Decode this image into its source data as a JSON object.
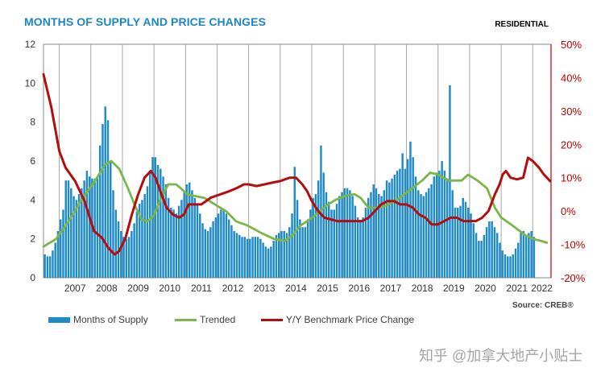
{
  "header": {
    "title": "MONTHS OF SUPPLY AND PRICE CHANGES",
    "tag": "RESIDENTIAL"
  },
  "source": "Source: CREB®",
  "watermark": "知乎 @加拿大地产小贴士",
  "colors": {
    "bars": "#1f8bc8",
    "trended": "#7ab648",
    "price": "#b50d0d",
    "title": "#1a86c7"
  },
  "chart_data": {
    "type": "bar",
    "title": "MONTHS OF SUPPLY AND PRICE CHANGES",
    "y_left": {
      "range": [
        0,
        12
      ],
      "ticks": [
        "0",
        "2",
        "4",
        "6",
        "8",
        "10",
        "12"
      ]
    },
    "y_right": {
      "range": [
        -20,
        50
      ],
      "ticks": [
        "-20%",
        "-10%",
        "0%",
        "10%",
        "20%",
        "30%",
        "40%",
        "50%"
      ]
    },
    "x_ticks": [
      "2007",
      "2008",
      "2009",
      "2010",
      "2011",
      "2012",
      "2013",
      "2014",
      "2015",
      "2016",
      "2017",
      "2018",
      "2019",
      "2020",
      "2021",
      "2022"
    ],
    "grid": "vertical year gridlines",
    "legend_position": "bottom",
    "series": [
      {
        "name": "Months of Supply",
        "type": "bar",
        "axis": "left",
        "start": "2006-07",
        "frequency": "monthly",
        "values": [
          1.2,
          1.1,
          1.1,
          1.4,
          1.8,
          2.4,
          3.0,
          3.5,
          5.0,
          5.0,
          4.6,
          4.2,
          4.0,
          4.3,
          4.6,
          5.0,
          5.5,
          5.2,
          5.1,
          5.1,
          5.2,
          6.8,
          7.9,
          8.8,
          8.1,
          6.0,
          4.5,
          3.5,
          2.9,
          2.4,
          2.1,
          2.0,
          2.1,
          2.4,
          2.8,
          3.4,
          3.8,
          4.0,
          4.3,
          4.7,
          5.5,
          6.2,
          6.2,
          5.8,
          5.6,
          5.2,
          4.8,
          4.1,
          3.6,
          3.5,
          3.3,
          3.7,
          4.0,
          4.4,
          4.8,
          4.9,
          4.5,
          4.1,
          3.8,
          3.3,
          2.8,
          2.5,
          2.4,
          2.6,
          2.9,
          3.1,
          3.3,
          3.5,
          3.5,
          3.3,
          3.0,
          2.7,
          2.4,
          2.3,
          2.2,
          2.1,
          2.1,
          2.0,
          2.0,
          2.1,
          2.1,
          2.1,
          2.0,
          1.8,
          1.6,
          1.5,
          1.6,
          1.9,
          2.2,
          2.3,
          2.4,
          2.4,
          2.3,
          2.6,
          3.3,
          5.7,
          4.0,
          3.0,
          2.6,
          2.6,
          3.0,
          3.5,
          4.1,
          4.3,
          5.0,
          6.8,
          5.4,
          4.4,
          3.9,
          3.5,
          3.5,
          3.8,
          4.2,
          4.4,
          4.6,
          4.6,
          4.5,
          4.2,
          3.7,
          3.1,
          2.9,
          3.1,
          3.6,
          4.1,
          4.4,
          4.8,
          4.6,
          4.3,
          4.2,
          4.5,
          5.0,
          4.9,
          5.1,
          5.3,
          5.5,
          5.6,
          6.4,
          5.6,
          6.1,
          7.0,
          6.2,
          5.2,
          4.5,
          4.3,
          4.2,
          4.4,
          4.6,
          4.8,
          5.2,
          5.4,
          5.5,
          6.0,
          5.5,
          5.1,
          9.9,
          4.5,
          3.6,
          3.6,
          3.7,
          4.1,
          3.9,
          3.6,
          3.3,
          2.8,
          2.3,
          1.9,
          1.9,
          2.2,
          2.6,
          2.9,
          2.9,
          2.6,
          2.3,
          1.8,
          1.4,
          1.2,
          1.1,
          1.1,
          1.2,
          1.5,
          1.8,
          2.3,
          2.4,
          2.2,
          2.3,
          2.4,
          2.1
        ]
      },
      {
        "name": "Trended",
        "type": "line",
        "axis": "left",
        "points": [
          [
            2006.5,
            1.6
          ],
          [
            2006.9,
            2.0
          ],
          [
            2007.3,
            2.9
          ],
          [
            2007.7,
            4.0
          ],
          [
            2008.1,
            4.9
          ],
          [
            2008.45,
            5.8
          ],
          [
            2008.65,
            6.0
          ],
          [
            2008.9,
            5.6
          ],
          [
            2009.15,
            4.7
          ],
          [
            2009.4,
            3.7
          ],
          [
            2009.6,
            3.0
          ],
          [
            2009.8,
            2.9
          ],
          [
            2010.0,
            3.2
          ],
          [
            2010.2,
            4.0
          ],
          [
            2010.45,
            4.8
          ],
          [
            2010.7,
            4.8
          ],
          [
            2010.85,
            4.6
          ],
          [
            2011.05,
            4.3
          ],
          [
            2011.3,
            4.2
          ],
          [
            2011.6,
            4.1
          ],
          [
            2011.9,
            3.8
          ],
          [
            2012.3,
            3.4
          ],
          [
            2012.6,
            2.9
          ],
          [
            2012.95,
            2.7
          ],
          [
            2013.4,
            2.3
          ],
          [
            2013.8,
            2.0
          ],
          [
            2014.15,
            1.9
          ],
          [
            2014.4,
            2.2
          ],
          [
            2014.65,
            2.7
          ],
          [
            2014.85,
            2.9
          ],
          [
            2015.1,
            3.2
          ],
          [
            2015.45,
            3.7
          ],
          [
            2015.75,
            4.0
          ],
          [
            2016.05,
            4.2
          ],
          [
            2016.35,
            4.3
          ],
          [
            2016.55,
            4.1
          ],
          [
            2016.8,
            3.6
          ],
          [
            2017.05,
            3.6
          ],
          [
            2017.35,
            3.7
          ],
          [
            2017.7,
            4.0
          ],
          [
            2018.1,
            4.5
          ],
          [
            2018.5,
            5.0
          ],
          [
            2018.75,
            5.4
          ],
          [
            2019.0,
            5.3
          ],
          [
            2019.35,
            5.0
          ],
          [
            2019.75,
            5.0
          ],
          [
            2019.95,
            5.3
          ],
          [
            2020.25,
            5.0
          ],
          [
            2020.55,
            4.6
          ],
          [
            2020.8,
            3.6
          ],
          [
            2021.0,
            3.1
          ],
          [
            2021.35,
            2.7
          ],
          [
            2021.75,
            2.2
          ],
          [
            2022.0,
            2.0
          ],
          [
            2022.25,
            1.9
          ],
          [
            2022.45,
            1.8
          ]
        ]
      },
      {
        "name": "Y/Y Benchmark Price Change",
        "type": "line",
        "axis": "right",
        "points": [
          [
            2006.5,
            41
          ],
          [
            2006.75,
            31
          ],
          [
            2007.0,
            18
          ],
          [
            2007.2,
            13
          ],
          [
            2007.5,
            9
          ],
          [
            2007.8,
            3
          ],
          [
            2008.1,
            -6
          ],
          [
            2008.35,
            -8
          ],
          [
            2008.55,
            -11
          ],
          [
            2008.75,
            -13
          ],
          [
            2008.9,
            -12
          ],
          [
            2009.1,
            -8
          ],
          [
            2009.3,
            -1
          ],
          [
            2009.5,
            5
          ],
          [
            2009.7,
            10
          ],
          [
            2009.9,
            12
          ],
          [
            2010.05,
            10
          ],
          [
            2010.2,
            6
          ],
          [
            2010.4,
            1
          ],
          [
            2010.6,
            -1
          ],
          [
            2010.8,
            -2
          ],
          [
            2010.95,
            -1
          ],
          [
            2011.1,
            2
          ],
          [
            2011.3,
            2
          ],
          [
            2011.5,
            2
          ],
          [
            2011.8,
            4
          ],
          [
            2012.1,
            5
          ],
          [
            2012.4,
            6
          ],
          [
            2012.65,
            7
          ],
          [
            2012.85,
            8
          ],
          [
            2013.0,
            8
          ],
          [
            2013.25,
            7.5
          ],
          [
            2013.5,
            8
          ],
          [
            2013.75,
            8.5
          ],
          [
            2014.0,
            9
          ],
          [
            2014.15,
            9.5
          ],
          [
            2014.3,
            10
          ],
          [
            2014.5,
            10
          ],
          [
            2014.7,
            8
          ],
          [
            2014.85,
            6
          ],
          [
            2015.0,
            3
          ],
          [
            2015.2,
            0
          ],
          [
            2015.4,
            -2
          ],
          [
            2015.6,
            -2.5
          ],
          [
            2015.8,
            -3
          ],
          [
            2016.0,
            -3
          ],
          [
            2016.2,
            -3
          ],
          [
            2016.4,
            -3
          ],
          [
            2016.6,
            -3
          ],
          [
            2016.8,
            -2
          ],
          [
            2017.0,
            0
          ],
          [
            2017.2,
            2
          ],
          [
            2017.4,
            3
          ],
          [
            2017.6,
            3
          ],
          [
            2017.8,
            2
          ],
          [
            2018.0,
            2
          ],
          [
            2018.2,
            1
          ],
          [
            2018.4,
            -1
          ],
          [
            2018.6,
            -2
          ],
          [
            2018.8,
            -4
          ],
          [
            2019.0,
            -4
          ],
          [
            2019.2,
            -3
          ],
          [
            2019.4,
            -2
          ],
          [
            2019.6,
            -2
          ],
          [
            2019.8,
            -3
          ],
          [
            2020.0,
            -3
          ],
          [
            2020.2,
            -3
          ],
          [
            2020.4,
            -2
          ],
          [
            2020.6,
            0
          ],
          [
            2020.8,
            5
          ],
          [
            2020.95,
            8
          ],
          [
            2021.05,
            11
          ],
          [
            2021.15,
            12
          ],
          [
            2021.3,
            10
          ],
          [
            2021.5,
            9.5
          ],
          [
            2021.7,
            10
          ],
          [
            2021.85,
            16
          ],
          [
            2022.0,
            15
          ],
          [
            2022.2,
            13
          ],
          [
            2022.35,
            11
          ],
          [
            2022.45,
            10
          ],
          [
            2022.55,
            9
          ]
        ]
      }
    ]
  },
  "legend": [
    {
      "label": "Months of Supply"
    },
    {
      "label": "Trended"
    },
    {
      "label": "Y/Y Benchmark Price Change"
    }
  ]
}
